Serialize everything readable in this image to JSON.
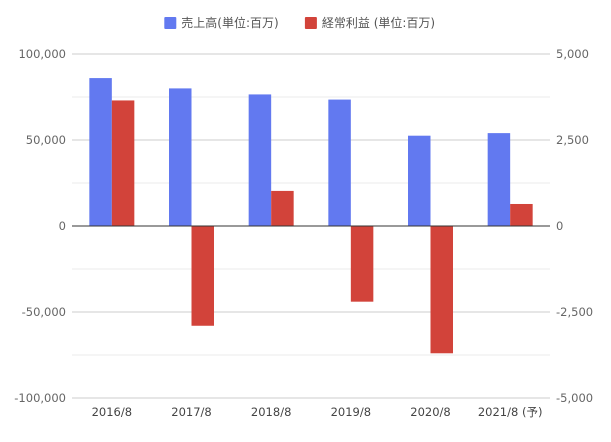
{
  "chart_data": {
    "type": "bar",
    "categories": [
      "2016/8",
      "2017/8",
      "2018/8",
      "2019/8",
      "2020/8",
      "2021/8 (予)"
    ],
    "series": [
      {
        "name": "売上高(単位:百万)",
        "axis": "left",
        "color": "#6279f0",
        "values": [
          86000,
          80000,
          76500,
          73500,
          52500,
          54000
        ]
      },
      {
        "name": "経常利益 (単位:百万)",
        "axis": "right",
        "color": "#d2433a",
        "values": [
          3650,
          -2900,
          1020,
          -2200,
          -3700,
          640
        ]
      }
    ],
    "y_left": {
      "lim": [
        -100000,
        100000
      ],
      "ticks": [
        100000,
        50000,
        0,
        -50000,
        -100000
      ],
      "tick_labels": [
        "100,000",
        "50,000",
        "0",
        "-50,000",
        "-100,000"
      ]
    },
    "y_right": {
      "lim": [
        -5000,
        5000
      ],
      "ticks": [
        5000,
        2500,
        0,
        -2500,
        -5000
      ],
      "tick_labels": [
        "5,000",
        "2,500",
        "0",
        "-2,500",
        "-5,000"
      ]
    },
    "grid": true,
    "legend": "top-center",
    "title": "",
    "xlabel": "",
    "ylabel": ""
  }
}
